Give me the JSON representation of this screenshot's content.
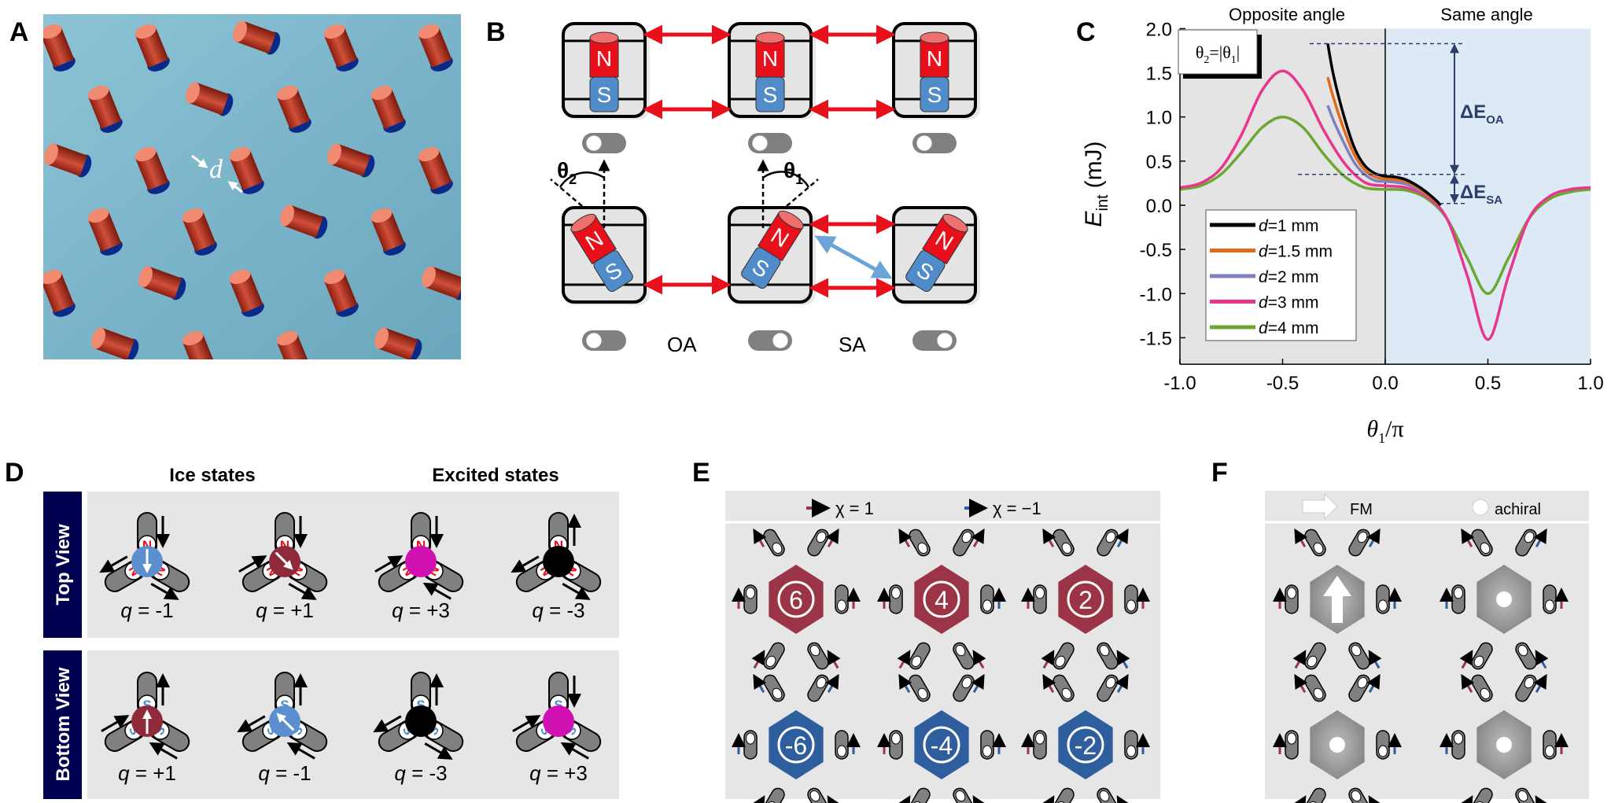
{
  "panel_labels": {
    "a": "A",
    "b": "B",
    "c": "C",
    "d": "D",
    "e": "E",
    "f": "F"
  },
  "panel_a": {
    "distance_label": "d",
    "background_color": "#86bccf",
    "magnet_color": "#c8402c"
  },
  "panel_b": {
    "north": "N",
    "south": "S",
    "theta1": "θ",
    "theta1_sub": "1",
    "theta2": "θ",
    "theta2_sub": "2",
    "oa_label": "OA",
    "sa_label": "SA",
    "north_color": "#e8101a",
    "south_color": "#4f8cc9",
    "interaction_color": "#e8101a",
    "diagonal_interaction_color": "#6aa4d8"
  },
  "chart_data": {
    "type": "line",
    "region_labels": [
      "Opposite angle",
      "Same angle"
    ],
    "region_colors": [
      "#e4e4e4",
      "#dde9f5"
    ],
    "ylabel": {
      "symbol": "E",
      "subscript": "int",
      "unit": "(mJ)"
    },
    "xlabel": {
      "symbol": "θ",
      "subscript": "1",
      "suffix": "/π"
    },
    "xlim": [
      -1.0,
      1.0
    ],
    "ylim": [
      -1.8,
      2.0
    ],
    "xticks": [
      "-1.0",
      "-0.5",
      "0.0",
      "0.5",
      "1.0"
    ],
    "yticks": [
      "2.0",
      "1.5",
      "1.0",
      "0.5",
      "0.0",
      "-0.5",
      "-1.0",
      "-1.5"
    ],
    "condition_label": {
      "a": "θ",
      "a_sub": "2",
      "mid": "=|θ",
      "b_sub": "1",
      "end": "|"
    },
    "annotations": [
      {
        "symbol": "ΔE",
        "subscript": "OA",
        "from": 1.83,
        "to": 0.35
      },
      {
        "symbol": "ΔE",
        "subscript": "SA",
        "from": 0.35,
        "to": 0.02
      }
    ],
    "legend_position": "lower-left",
    "series": [
      {
        "name": "d=1 mm",
        "d_prefix": "d",
        "d_rest": "=1 mm",
        "color": "#000000",
        "x": [
          -0.28,
          -0.25,
          -0.2,
          -0.15,
          -0.1,
          -0.05,
          0,
          0.05,
          0.1,
          0.15,
          0.2,
          0.25,
          0.27
        ],
        "y": [
          1.83,
          1.45,
          1.0,
          0.65,
          0.45,
          0.36,
          0.33,
          0.32,
          0.29,
          0.23,
          0.15,
          0.05,
          0.0
        ]
      },
      {
        "name": "d=1.5 mm",
        "d_prefix": "d",
        "d_rest": "=1.5 mm",
        "color": "#e06c1a",
        "x": [
          -0.28,
          -0.25,
          -0.2,
          -0.15,
          -0.1,
          -0.05,
          0,
          0.05,
          0.1,
          0.15,
          0.2,
          0.25,
          0.27
        ],
        "y": [
          1.45,
          1.2,
          0.85,
          0.57,
          0.4,
          0.32,
          0.3,
          0.29,
          0.27,
          0.21,
          0.13,
          0.04,
          0.0
        ]
      },
      {
        "name": "d=2 mm",
        "d_prefix": "d",
        "d_rest": "=2 mm",
        "color": "#8080c0",
        "x": [
          -0.28,
          -0.25,
          -0.2,
          -0.15,
          -0.1,
          -0.05,
          0,
          0.05,
          0.1,
          0.15,
          0.2,
          0.25,
          0.27
        ],
        "y": [
          1.13,
          0.95,
          0.7,
          0.48,
          0.35,
          0.28,
          0.27,
          0.26,
          0.24,
          0.19,
          0.12,
          0.04,
          0.0
        ]
      },
      {
        "name": "d=3 mm",
        "d_prefix": "d",
        "d_rest": "=3 mm",
        "color": "#e8368f",
        "x": [
          -1,
          -0.9,
          -0.8,
          -0.7,
          -0.6,
          -0.5,
          -0.4,
          -0.3,
          -0.2,
          -0.1,
          0,
          0.1,
          0.2,
          0.3,
          0.4,
          0.5,
          0.6,
          0.7,
          0.8,
          0.9,
          1.0
        ],
        "y": [
          0.2,
          0.25,
          0.42,
          0.8,
          1.3,
          1.52,
          1.3,
          0.85,
          0.48,
          0.26,
          0.22,
          0.2,
          0.1,
          -0.15,
          -0.8,
          -1.52,
          -0.8,
          -0.15,
          0.1,
          0.18,
          0.2
        ]
      },
      {
        "name": "d=4 mm",
        "d_prefix": "d",
        "d_rest": "=4 mm",
        "color": "#6aa832",
        "x": [
          -1,
          -0.9,
          -0.8,
          -0.7,
          -0.6,
          -0.5,
          -0.4,
          -0.3,
          -0.2,
          -0.1,
          0,
          0.1,
          0.2,
          0.3,
          0.4,
          0.5,
          0.6,
          0.7,
          0.8,
          0.9,
          1.0
        ],
        "y": [
          0.18,
          0.22,
          0.35,
          0.6,
          0.88,
          1.0,
          0.88,
          0.58,
          0.33,
          0.2,
          0.18,
          0.17,
          0.08,
          -0.15,
          -0.6,
          -1.0,
          -0.6,
          -0.15,
          0.07,
          0.15,
          0.18
        ]
      }
    ]
  },
  "panel_d": {
    "ice_title": "Ice states",
    "excited_title": "Excited states",
    "top_view": "Top View",
    "bottom_view": "Bottom View",
    "top": [
      {
        "charge": "q = -1",
        "pole": "N",
        "ball": "#5b8fcf",
        "spins": [
          "in",
          "out",
          "out"
        ]
      },
      {
        "charge": "q = +1",
        "pole": "N",
        "ball": "#8e2a3a",
        "spins": [
          "in",
          "in",
          "out"
        ]
      },
      {
        "charge": "q = +3",
        "pole": "N",
        "ball": "#d010b0",
        "spins": [
          "in",
          "in",
          "in"
        ]
      },
      {
        "charge": "q = -3",
        "pole": "N",
        "ball": "#000000",
        "spins": [
          "out",
          "out",
          "out"
        ]
      }
    ],
    "bottom": [
      {
        "charge": "q = +1",
        "pole": "S",
        "ball": "#8e2a3a",
        "spins": [
          "out",
          "in",
          "in"
        ]
      },
      {
        "charge": "q = -1",
        "pole": "S",
        "ball": "#5b8fcf",
        "spins": [
          "out",
          "out",
          "in"
        ]
      },
      {
        "charge": "q = -3",
        "pole": "S",
        "ball": "#000000",
        "spins": [
          "out",
          "out",
          "out"
        ]
      },
      {
        "charge": "q = +3",
        "pole": "S",
        "ball": "#d010b0",
        "spins": [
          "in",
          "in",
          "in"
        ]
      }
    ],
    "north_color": "#e8101a",
    "south_color": "#4f8cc9",
    "view_label_bg": "#000050"
  },
  "panel_e": {
    "legend": [
      {
        "label": "χ = 1",
        "color": "#9b3446"
      },
      {
        "label": "χ = −1",
        "color": "#2f5e9e"
      }
    ],
    "vertices": [
      {
        "number": "6",
        "chirality": [
          1,
          1,
          1,
          1,
          1,
          1
        ]
      },
      {
        "number": "4",
        "chirality": [
          1,
          1,
          -1,
          1,
          1,
          1
        ]
      },
      {
        "number": "2",
        "chirality": [
          1,
          -1,
          1,
          -1,
          1,
          1
        ]
      },
      {
        "number": "-6",
        "chirality": [
          -1,
          -1,
          -1,
          -1,
          -1,
          -1
        ]
      },
      {
        "number": "-4",
        "chirality": [
          -1,
          -1,
          -1,
          -1,
          -1,
          1
        ]
      },
      {
        "number": "-2",
        "chirality": [
          1,
          -1,
          -1,
          -1,
          -1,
          1
        ]
      }
    ]
  },
  "panel_f": {
    "fm_label": "FM",
    "achiral_label": "achiral",
    "vertices": [
      {
        "type": "FM",
        "chirality": [
          1,
          -1,
          -1,
          -1,
          1,
          1
        ]
      },
      {
        "type": "achiral",
        "chirality": [
          1,
          -1,
          1,
          -1,
          1,
          -1
        ]
      },
      {
        "type": "achiral",
        "chirality": [
          1,
          -1,
          -1,
          1,
          -1,
          1
        ]
      },
      {
        "type": "achiral",
        "chirality": [
          1,
          -1,
          1,
          -1,
          1,
          -1
        ]
      }
    ]
  }
}
